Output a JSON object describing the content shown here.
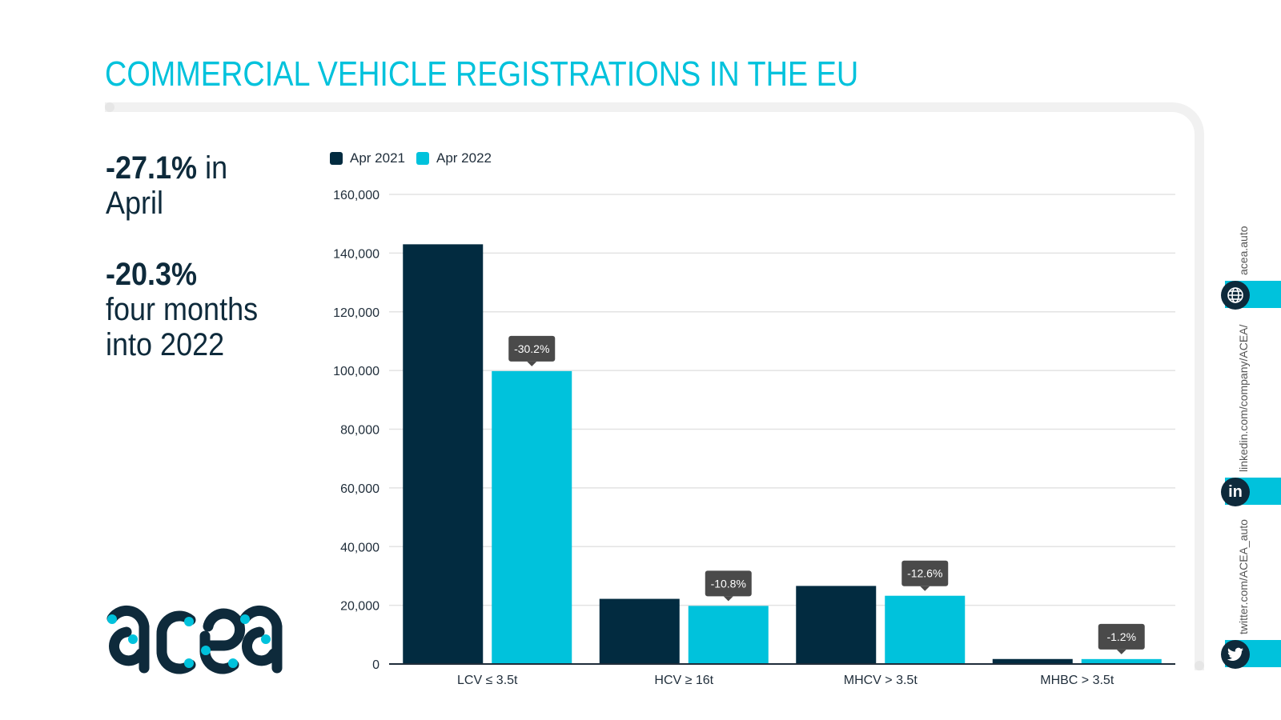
{
  "header": {
    "title": "COMMERCIAL VEHICLE REGISTRATIONS IN THE EU"
  },
  "kpis": [
    {
      "value": "-27.1%",
      "text_inline": " in",
      "text_lines": [
        "April"
      ]
    },
    {
      "value": "-20.3%",
      "text_lines": [
        "four months",
        "into 2022"
      ]
    }
  ],
  "brand": {
    "logo_text": "acea",
    "primary_color": "#0e2a3b",
    "accent_color": "#00c2dc"
  },
  "social": [
    {
      "icon": "globe-icon",
      "text": "acea.auto"
    },
    {
      "icon": "linkedin-icon",
      "text": "linkedin.com/company/ACEA/"
    },
    {
      "icon": "twitter-icon",
      "text": "twitter.com/ACEA_auto"
    }
  ],
  "chart_data": {
    "type": "bar",
    "title": "",
    "xlabel": "",
    "ylabel": "",
    "categories": [
      "LCV ≤ 3.5t",
      "HCV ≥ 16t",
      "MHCV > 3.5t",
      "MHBC > 3.5t"
    ],
    "series": [
      {
        "name": "Apr 2021",
        "color": "#022b40",
        "values": [
          143000,
          22200,
          26600,
          1700
        ]
      },
      {
        "name": "Apr 2022",
        "color": "#00c2dc",
        "values": [
          99800,
          19800,
          23250,
          1680
        ]
      }
    ],
    "annotations": [
      {
        "category": "LCV ≤ 3.5t",
        "series": "Apr 2022",
        "text": "-30.2%"
      },
      {
        "category": "HCV ≥ 16t",
        "series": "Apr 2022",
        "text": "-10.8%"
      },
      {
        "category": "MHCV > 3.5t",
        "series": "Apr 2022",
        "text": "-12.6%"
      },
      {
        "category": "MHBC > 3.5t",
        "series": "Apr 2022",
        "text": "-1.2%"
      }
    ],
    "yticks": [
      0,
      20000,
      40000,
      60000,
      80000,
      100000,
      120000,
      140000,
      160000
    ],
    "ytick_labels": [
      "0",
      "20,000",
      "40,000",
      "60,000",
      "80,000",
      "100,000",
      "120,000",
      "140,000",
      "160,000"
    ],
    "ylim": [
      0,
      160000
    ],
    "grid": true,
    "legend_position": "top-left"
  }
}
